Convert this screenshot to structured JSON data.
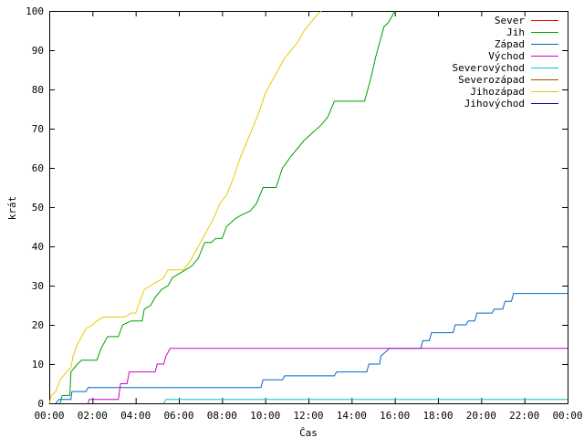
{
  "chart_data": {
    "type": "line",
    "xlabel": "Čas",
    "ylabel": "krát",
    "xlim": [
      0,
      24
    ],
    "ylim": [
      0,
      100
    ],
    "x_tick_labels": [
      "00:00",
      "02:00",
      "04:00",
      "06:00",
      "08:00",
      "10:00",
      "12:00",
      "14:00",
      "16:00",
      "18:00",
      "20:00",
      "22:00",
      "00:00"
    ],
    "y_ticks": [
      0,
      10,
      20,
      30,
      40,
      50,
      60,
      70,
      80,
      90,
      100
    ],
    "grid": false,
    "legend_position": "top-right",
    "series": [
      {
        "name": "Sever",
        "color": "#ff0000",
        "points": []
      },
      {
        "name": "Jih",
        "color": "#00a000",
        "points": [
          [
            0.5,
            0
          ],
          [
            0.6,
            2
          ],
          [
            0.95,
            2
          ],
          [
            1.0,
            8
          ],
          [
            1.3,
            10
          ],
          [
            1.5,
            11
          ],
          [
            2.2,
            11
          ],
          [
            2.4,
            14
          ],
          [
            2.7,
            17
          ],
          [
            3.2,
            17
          ],
          [
            3.4,
            20
          ],
          [
            3.8,
            21
          ],
          [
            4.3,
            21
          ],
          [
            4.4,
            24
          ],
          [
            4.7,
            25
          ],
          [
            4.9,
            27
          ],
          [
            5.2,
            29
          ],
          [
            5.5,
            30
          ],
          [
            5.7,
            32
          ],
          [
            6.0,
            33
          ],
          [
            6.3,
            34
          ],
          [
            6.6,
            35
          ],
          [
            6.9,
            37
          ],
          [
            7.2,
            41
          ],
          [
            7.5,
            41
          ],
          [
            7.7,
            42
          ],
          [
            8.0,
            42
          ],
          [
            8.2,
            45
          ],
          [
            8.6,
            47
          ],
          [
            8.9,
            48
          ],
          [
            9.3,
            49
          ],
          [
            9.6,
            51
          ],
          [
            9.9,
            55
          ],
          [
            10.5,
            55
          ],
          [
            10.8,
            60
          ],
          [
            11.2,
            63
          ],
          [
            11.5,
            65
          ],
          [
            11.8,
            67
          ],
          [
            12.2,
            69
          ],
          [
            12.6,
            71
          ],
          [
            12.9,
            73
          ],
          [
            13.2,
            77
          ],
          [
            14.6,
            77
          ],
          [
            14.9,
            83
          ],
          [
            15.1,
            88
          ],
          [
            15.3,
            92
          ],
          [
            15.5,
            96
          ],
          [
            15.7,
            97
          ],
          [
            16.0,
            100
          ]
        ]
      },
      {
        "name": "Západ",
        "color": "#0066cc",
        "points": [
          [
            0.3,
            0
          ],
          [
            0.45,
            1
          ],
          [
            1.0,
            1
          ],
          [
            1.05,
            3
          ],
          [
            1.7,
            3
          ],
          [
            1.8,
            4
          ],
          [
            9.8,
            4
          ],
          [
            9.9,
            6
          ],
          [
            10.8,
            6
          ],
          [
            10.9,
            7
          ],
          [
            13.2,
            7
          ],
          [
            13.3,
            8
          ],
          [
            14.7,
            8
          ],
          [
            14.8,
            10
          ],
          [
            15.3,
            10
          ],
          [
            15.35,
            12
          ],
          [
            15.55,
            13
          ],
          [
            15.75,
            14
          ],
          [
            17.2,
            14
          ],
          [
            17.3,
            16
          ],
          [
            17.6,
            16
          ],
          [
            17.7,
            18
          ],
          [
            18.7,
            18
          ],
          [
            18.8,
            20
          ],
          [
            19.3,
            20
          ],
          [
            19.4,
            21
          ],
          [
            19.7,
            21
          ],
          [
            19.8,
            23
          ],
          [
            20.5,
            23
          ],
          [
            20.6,
            24
          ],
          [
            21.0,
            24
          ],
          [
            21.1,
            26
          ],
          [
            21.4,
            26
          ],
          [
            21.5,
            28
          ],
          [
            24,
            28
          ]
        ]
      },
      {
        "name": "Východ",
        "color": "#cc00cc",
        "points": [
          [
            1.8,
            0
          ],
          [
            1.85,
            1
          ],
          [
            3.2,
            1
          ],
          [
            3.3,
            5
          ],
          [
            3.6,
            5
          ],
          [
            3.7,
            8
          ],
          [
            4.9,
            8
          ],
          [
            5.0,
            10
          ],
          [
            5.3,
            10
          ],
          [
            5.4,
            12
          ],
          [
            5.6,
            14
          ],
          [
            24,
            14
          ]
        ]
      },
      {
        "name": "Severovýchod",
        "color": "#00cccc",
        "points": [
          [
            5.3,
            0
          ],
          [
            5.4,
            1
          ],
          [
            24,
            1
          ]
        ]
      },
      {
        "name": "Severozápad",
        "color": "#a05000",
        "points": []
      },
      {
        "name": "Jihozápad",
        "color": "#e6cc00",
        "points": [
          [
            0,
            0
          ],
          [
            0.1,
            2
          ],
          [
            0.3,
            3
          ],
          [
            0.5,
            6
          ],
          [
            0.8,
            8
          ],
          [
            1.0,
            9
          ],
          [
            1.1,
            12
          ],
          [
            1.3,
            15
          ],
          [
            1.5,
            17
          ],
          [
            1.7,
            19
          ],
          [
            2.0,
            20
          ],
          [
            2.2,
            21
          ],
          [
            2.5,
            22
          ],
          [
            3.5,
            22
          ],
          [
            3.8,
            23
          ],
          [
            4.0,
            23
          ],
          [
            4.2,
            26
          ],
          [
            4.4,
            29
          ],
          [
            4.7,
            30
          ],
          [
            5.0,
            31
          ],
          [
            5.3,
            32
          ],
          [
            5.5,
            34
          ],
          [
            6.2,
            34
          ],
          [
            6.5,
            36
          ],
          [
            6.9,
            40
          ],
          [
            7.3,
            44
          ],
          [
            7.6,
            47
          ],
          [
            7.9,
            51
          ],
          [
            8.2,
            53
          ],
          [
            8.5,
            57
          ],
          [
            8.8,
            62
          ],
          [
            9.1,
            66
          ],
          [
            9.4,
            70
          ],
          [
            9.7,
            74
          ],
          [
            10.0,
            79
          ],
          [
            10.3,
            82
          ],
          [
            10.6,
            85
          ],
          [
            10.9,
            88
          ],
          [
            11.2,
            90
          ],
          [
            11.5,
            92
          ],
          [
            11.8,
            95
          ],
          [
            12.1,
            97
          ],
          [
            12.4,
            99
          ],
          [
            12.6,
            100
          ]
        ]
      },
      {
        "name": "Jihovýchod",
        "color": "#0000aa",
        "points": []
      }
    ]
  }
}
